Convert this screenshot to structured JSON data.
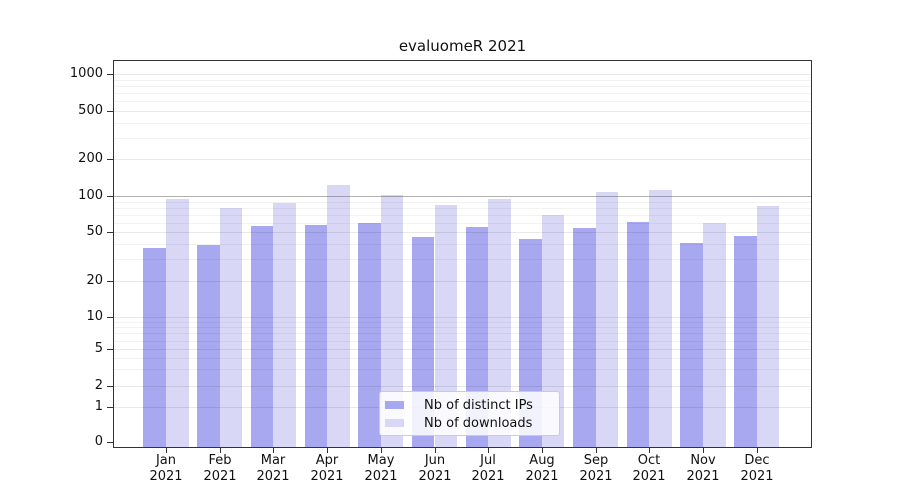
{
  "chart_data": {
    "type": "bar",
    "title": "evaluomeR 2021",
    "y_scale": "pseudo-log",
    "y_ticks": [
      0,
      1,
      2,
      5,
      10,
      20,
      50,
      100,
      200,
      500,
      1000
    ],
    "x_tick_year": "2021",
    "x_tick_months": [
      "Jan",
      "Feb",
      "Mar",
      "Apr",
      "May",
      "Jun",
      "Jul",
      "Aug",
      "Sep",
      "Oct",
      "Nov",
      "Dec"
    ],
    "categories": [
      "Jan 2021",
      "Feb 2021",
      "Mar 2021",
      "Apr 2021",
      "May 2021",
      "Jun 2021",
      "Jul 2021",
      "Aug 2021",
      "Sep 2021",
      "Oct 2021",
      "Nov 2021",
      "Dec 2021"
    ],
    "series": [
      {
        "name": "Nb of distinct IPs",
        "color": "#a8a8f0",
        "values": [
          37,
          39,
          57,
          58,
          60,
          46,
          55,
          44,
          54,
          61,
          41,
          47
        ]
      },
      {
        "name": "Nb of downloads",
        "color": "#d8d8f6",
        "values": [
          95,
          79,
          88,
          122,
          102,
          85,
          94,
          70,
          108,
          111,
          60,
          83
        ]
      }
    ],
    "legend": {
      "position": "bottom-center"
    },
    "grid": "major-and-minor",
    "colors": {
      "emphasized_gridline_value": 100,
      "spine": "#333333"
    }
  }
}
